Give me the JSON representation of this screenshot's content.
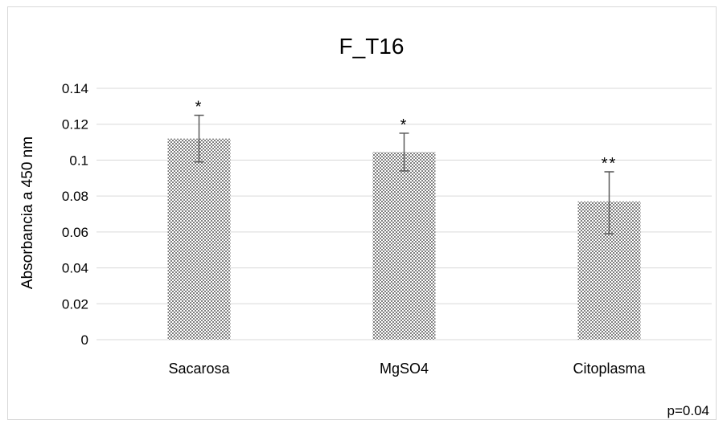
{
  "chart_data": {
    "type": "bar",
    "title": "F_T16",
    "ylabel": "Absorbancia a 450 nm",
    "xlabel": "",
    "categories": [
      "Sacarosa",
      "MgSO4",
      "Citoplasma"
    ],
    "values": [
      0.112,
      0.1045,
      0.077
    ],
    "error_upper": [
      0.013,
      0.0105,
      0.0165
    ],
    "error_lower": [
      0.013,
      0.0105,
      0.018
    ],
    "significance": [
      "*",
      "*",
      "**"
    ],
    "ylim": [
      0,
      0.14
    ],
    "yticks": [
      0,
      0.02,
      0.04,
      0.06,
      0.08,
      0.1,
      0.12,
      0.14
    ],
    "ytick_labels": [
      "0",
      "0.02",
      "0.04",
      "0.06",
      "0.08",
      "0.1",
      "0.12",
      "0.14"
    ],
    "grid": true,
    "bar_pattern": "grey checkered",
    "colors": {
      "bar_dark": "#7f7f7f",
      "bar_light": "#ffffff",
      "grid": "#d9d9d9",
      "error": "#595959"
    },
    "annotation": "p=0.04"
  }
}
